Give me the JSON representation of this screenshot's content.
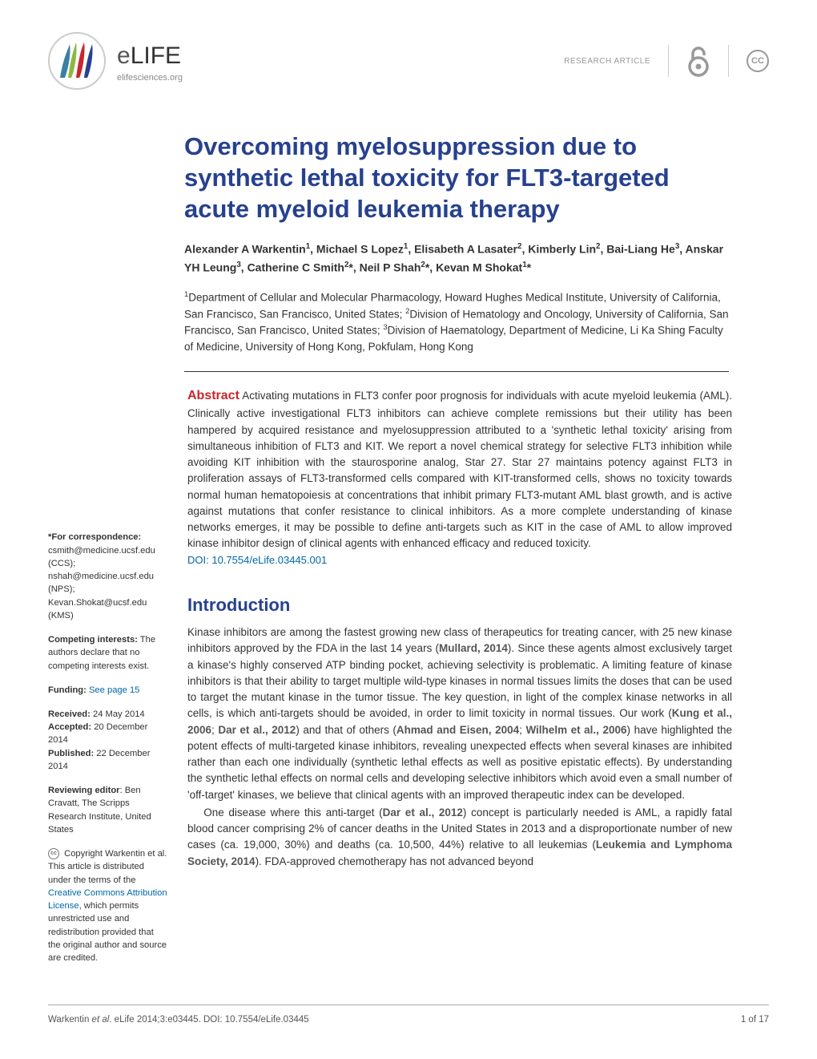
{
  "header": {
    "journal_name_e": "e",
    "journal_name_life": "LIFE",
    "journal_url": "elifesciences.org",
    "article_type": "RESEARCH ARTICLE",
    "cc_label": "CC"
  },
  "title": "Overcoming myelosuppression due to synthetic lethal toxicity for FLT3-targeted acute myeloid leukemia therapy",
  "authors_html": "Alexander A Warkentin<sup>1</sup>, Michael S Lopez<sup>1</sup>, Elisabeth A Lasater<sup>2</sup>, Kimberly Lin<sup>2</sup>, Bai-Liang He<sup>3</sup>, Anskar YH Leung<sup>3</sup>, Catherine C Smith<sup>2</sup>*, Neil P Shah<sup>2</sup>*, Kevan M Shokat<sup>1</sup>*",
  "affiliations_html": "<sup>1</sup>Department of Cellular and Molecular Pharmacology, Howard Hughes Medical Institute, University of California, San Francisco, San Francisco, United States; <sup>2</sup>Division of Hematology and Oncology, University of California, San Francisco, San Francisco, United States; <sup>3</sup>Division of Haematology, Department of Medicine, Li Ka Shing Faculty of Medicine, University of Hong Kong, Pokfulam, Hong Kong",
  "abstract": {
    "label": "Abstract",
    "text": " Activating mutations in FLT3 confer poor prognosis for individuals with acute myeloid leukemia (AML). Clinically active investigational FLT3 inhibitors can achieve complete remissions but their utility has been hampered by acquired resistance and myelosuppression attributed to a 'synthetic lethal toxicity' arising from simultaneous inhibition of FLT3 and KIT. We report a novel chemical strategy for selective FLT3 inhibition while avoiding KIT inhibition with the staurosporine analog, Star 27. Star 27 maintains potency against FLT3 in proliferation assays of FLT3-transformed cells compared with KIT-transformed cells, shows no toxicity towards normal human hematopoiesis at concentrations that inhibit primary FLT3-mutant AML blast growth, and is active against mutations that confer resistance to clinical inhibitors. As a more complete understanding of kinase networks emerges, it may be possible to define anti-targets such as KIT in the case of AML to allow improved kinase inhibitor design of clinical agents with enhanced efficacy and reduced toxicity.",
    "doi": "DOI: 10.7554/eLife.03445.001"
  },
  "sidebar": {
    "correspondence_label": "*For correspondence:",
    "correspondence_text": " csmith@medicine.ucsf.edu (CCS); nshah@medicine.ucsf.edu (NPS); Kevan.Shokat@ucsf.edu (KMS)",
    "competing_label": "Competing interests:",
    "competing_text": " The authors declare that no competing interests exist.",
    "funding_label": "Funding:",
    "funding_link": " See page 15",
    "received_label": "Received:",
    "received_date": " 24 May 2014",
    "accepted_label": "Accepted:",
    "accepted_date": " 20 December 2014",
    "published_label": "Published:",
    "published_date": " 22 December 2014",
    "editor_label": "Reviewing editor",
    "editor_text": ": Ben Cravatt, The Scripps Research Institute, United States",
    "copyright_text_1": " Copyright Warkentin et al. This article is distributed under the terms of the ",
    "copyright_link": "Creative Commons Attribution License",
    "copyright_text_2": ", which permits unrestricted use and redistribution provided that the original author and source are credited."
  },
  "intro": {
    "heading": "Introduction",
    "para1_pre": "Kinase inhibitors are among the fastest growing new class of therapeutics for treating cancer, with 25 new kinase inhibitors approved by the FDA in the last 14 years (",
    "cite1": "Mullard, 2014",
    "para1_mid1": "). Since these agents almost exclusively target a kinase's highly conserved ATP binding pocket, achieving selectivity is problematic. A limiting feature of kinase inhibitors is that their ability to target multiple wild-type kinases in normal tissues limits the doses that can be used to target the mutant kinase in the tumor tissue. The key question, in light of the complex kinase networks in all cells, is which anti-targets should be avoided, in order to limit toxicity in normal tissues. Our work (",
    "cite2": "Kung et al., 2006",
    "para1_sep1": "; ",
    "cite3": "Dar et al., 2012",
    "para1_mid2": ") and that of others (",
    "cite4": "Ahmad and Eisen, 2004",
    "para1_sep2": "; ",
    "cite5": "Wilhelm et al., 2006",
    "para1_post": ") have highlighted the potent effects of multi-targeted kinase inhibitors, revealing unexpected effects when several kinases are inhibited rather than each one individually (synthetic lethal effects as well as positive epistatic effects). By understanding the synthetic lethal effects on normal cells and developing selective inhibitors which avoid even a small number of 'off-target' kinases, we believe that clinical agents with an improved therapeutic index can be developed.",
    "para2_pre": "One disease where this anti-target (",
    "cite6": "Dar et al., 2012",
    "para2_mid": ") concept is particularly needed is AML, a rapidly fatal blood cancer comprising 2% of cancer deaths in the United States in 2013 and a disproportionate number of new cases (ca. 19,000, 30%) and deaths (ca. 10,500, 44%) relative to all leukemias (",
    "cite7": "Leukemia and Lymphoma Society, 2014",
    "para2_post": "). FDA-approved chemotherapy has not advanced beyond"
  },
  "footer": {
    "citation": "Warkentin et al. eLife 2014;3:e03445. DOI: 10.7554/eLife.03445",
    "page": "1 of 17"
  },
  "colors": {
    "title": "#27418f",
    "abstract_label": "#c6272e",
    "link": "#0066a8"
  }
}
